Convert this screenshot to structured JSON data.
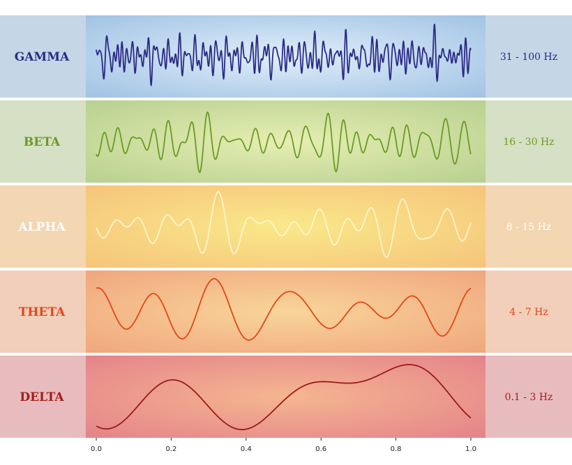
{
  "chart_data": {
    "type": "line",
    "title": "",
    "xlabel": "",
    "ylabel": "",
    "xlim": [
      0.0,
      1.0
    ],
    "x_ticks": [
      "0.0",
      "0.2",
      "0.4",
      "0.6",
      "0.8",
      "1.0"
    ],
    "grid": false,
    "legend": "none",
    "series": [
      {
        "key": "gamma",
        "name": "GAMMA",
        "range_label": "31 - 100 Hz",
        "color": "#2b2a86",
        "label_color": "#2b2a86",
        "band_color": "#c5d6e6",
        "plot_colors": [
          "#e0eefa",
          "#9dc0e2"
        ],
        "frequencies": [
          31,
          38,
          47,
          55,
          63,
          72,
          84,
          97
        ],
        "seed": 11,
        "amplitude": 0.78
      },
      {
        "key": "beta",
        "name": "BETA",
        "range_label": "16 - 30 Hz",
        "color": "#6b9a22",
        "label_color": "#6b9a22",
        "band_color": "#d5e0c4",
        "plot_colors": [
          "#e6eeb2",
          "#b4ce8e"
        ],
        "frequencies": [
          16,
          19,
          22,
          25,
          28,
          30
        ],
        "seed": 23,
        "amplitude": 0.75
      },
      {
        "key": "alpha",
        "name": "ALPHA",
        "range_label": "8 - 15 Hz",
        "color": "#fff5c9",
        "label_color": "#ffffff",
        "band_color": "#f3d6b2",
        "plot_colors": [
          "#fae88a",
          "#f5c27a"
        ],
        "frequencies": [
          8,
          10,
          12,
          14.5
        ],
        "seed": 37,
        "amplitude": 0.85
      },
      {
        "key": "theta",
        "name": "THETA",
        "range_label": "4 - 7 Hz",
        "color": "#e4461a",
        "label_color": "#e4461a",
        "band_color": "#f1cfba",
        "plot_colors": [
          "#f8d59a",
          "#f0a37c"
        ],
        "frequencies": [
          4,
          5,
          6,
          7
        ],
        "seed": 53,
        "amplitude": 0.8
      },
      {
        "key": "delta",
        "name": "DELTA",
        "range_label": "0.1 - 3 Hz",
        "color": "#9a1b1b",
        "label_color": "#a31d1d",
        "band_color": "#e8bcbe",
        "plot_colors": [
          "#f5b690",
          "#e3808a"
        ],
        "frequencies": [
          0.6,
          1.3,
          2.1,
          2.9
        ],
        "seed": 71,
        "amplitude": 0.8
      }
    ]
  }
}
